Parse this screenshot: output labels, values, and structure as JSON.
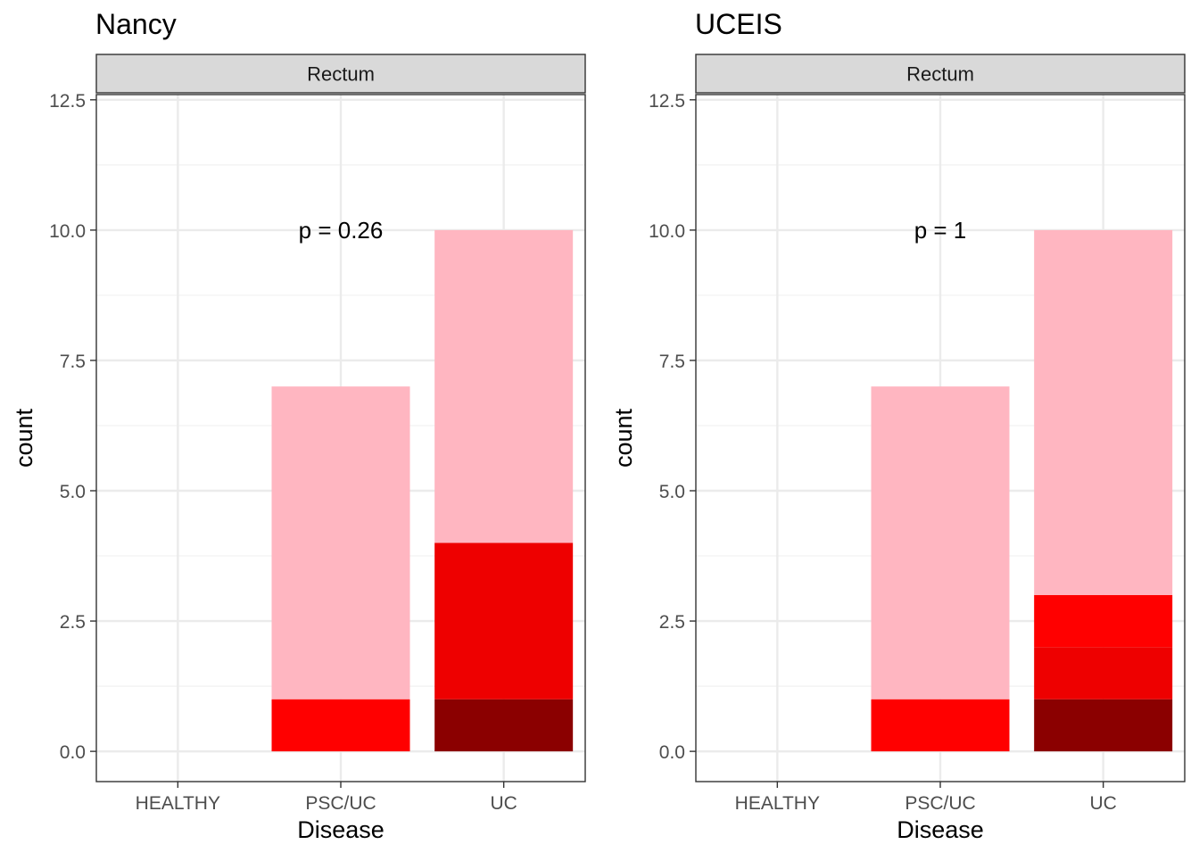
{
  "chart_data": [
    {
      "type": "bar",
      "stacked": true,
      "title": "Nancy",
      "facet": "Rectum",
      "xlabel": "Disease",
      "ylabel": "count",
      "categories": [
        "HEALTHY",
        "PSC/UC",
        "UC"
      ],
      "ylim": [
        -0.58,
        12.6
      ],
      "yticks": [
        "0.0",
        "2.5",
        "5.0",
        "7.5",
        "10.0",
        "12.5"
      ],
      "ytick_values": [
        0,
        2.5,
        5,
        7.5,
        10,
        12.5
      ],
      "grid": true,
      "annotation": {
        "text": "p = 0.26",
        "x": "PSC/UC",
        "y": 10
      },
      "series": [
        {
          "color": "#8B0000",
          "values": [
            0,
            0,
            1
          ]
        },
        {
          "color": "#EE0000",
          "values": [
            0,
            0,
            3
          ]
        },
        {
          "color": "#FF0000",
          "values": [
            0,
            1,
            0
          ]
        },
        {
          "color": "#FFB6C1",
          "values": [
            0,
            6,
            6
          ]
        }
      ]
    },
    {
      "type": "bar",
      "stacked": true,
      "title": "UCEIS",
      "facet": "Rectum",
      "xlabel": "Disease",
      "ylabel": "count",
      "categories": [
        "HEALTHY",
        "PSC/UC",
        "UC"
      ],
      "ylim": [
        -0.58,
        12.6
      ],
      "yticks": [
        "0.0",
        "2.5",
        "5.0",
        "7.5",
        "10.0",
        "12.5"
      ],
      "ytick_values": [
        0,
        2.5,
        5,
        7.5,
        10,
        12.5
      ],
      "grid": true,
      "annotation": {
        "text": "p = 1",
        "x": "PSC/UC",
        "y": 10
      },
      "series": [
        {
          "color": "#8B0000",
          "values": [
            0,
            0,
            1
          ]
        },
        {
          "color": "#EE0000",
          "values": [
            0,
            0,
            1
          ]
        },
        {
          "color": "#FF0000",
          "values": [
            0,
            1,
            1
          ]
        },
        {
          "color": "#FFB6C1",
          "values": [
            0,
            6,
            7
          ]
        }
      ]
    }
  ]
}
